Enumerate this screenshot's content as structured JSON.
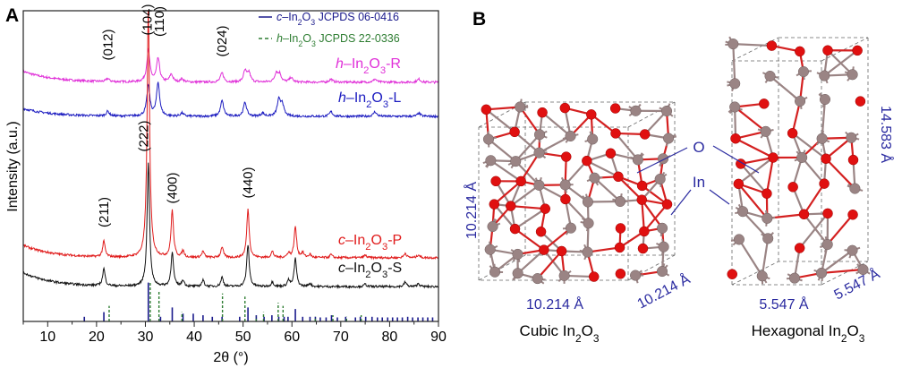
{
  "panel_a_label": "A",
  "panel_b_label": "B",
  "chart_data": {
    "type": "line",
    "xlabel": "2θ (°)",
    "ylabel": "Intensity (a.u.)",
    "xlim": [
      5,
      90
    ],
    "ylim": [
      0,
      100
    ],
    "xticks": [
      10,
      20,
      30,
      40,
      50,
      60,
      70,
      80,
      90
    ],
    "y_tick_labels": false,
    "grid": false,
    "legend": {
      "placement": "top-right",
      "entries": [
        {
          "label": "c–In2O3 JCPDS 06-0416",
          "color": "#1a1a8c",
          "style": "solid"
        },
        {
          "label": "h–In2O3 JCPDS 22-0336",
          "color": "#2e7d32",
          "style": "dashed"
        }
      ]
    },
    "series": [
      {
        "name": "h–In2O3-R",
        "color": "#e030d8",
        "baseline": 77,
        "start_offset": 3.5,
        "peaks": [
          [
            22.3,
            1
          ],
          [
            30.6,
            10
          ],
          [
            32.6,
            7.5
          ],
          [
            35.3,
            2.5
          ],
          [
            37.5,
            1
          ],
          [
            45.7,
            3
          ],
          [
            50.4,
            3.5
          ],
          [
            51.2,
            3
          ],
          [
            56.8,
            3
          ],
          [
            57.5,
            2.5
          ],
          [
            59.8,
            1.5
          ],
          [
            68,
            1
          ],
          [
            77,
            1
          ],
          [
            86,
            1
          ]
        ]
      },
      {
        "name": "h–In2O3-L",
        "color": "#1c1cc0",
        "baseline": 66,
        "start_offset": 2.5,
        "peaks": [
          [
            22.3,
            1.5
          ],
          [
            30.6,
            9.8
          ],
          [
            32.6,
            10.7
          ],
          [
            37.5,
            1
          ],
          [
            45.7,
            5
          ],
          [
            50.4,
            4.5
          ],
          [
            54,
            1
          ],
          [
            57.3,
            5
          ],
          [
            58,
            4
          ],
          [
            68,
            1.5
          ],
          [
            77,
            1.5
          ],
          [
            86,
            1
          ]
        ]
      },
      {
        "name": "c–In2O3-P",
        "color": "#e01b1b",
        "baseline": 20.5,
        "start_offset": 4,
        "peaks": [
          [
            21.5,
            5
          ],
          [
            30.6,
            80
          ],
          [
            35.5,
            15
          ],
          [
            37.7,
            2
          ],
          [
            41.8,
            2
          ],
          [
            45.7,
            3.5
          ],
          [
            51.0,
            15.6
          ],
          [
            56,
            2
          ],
          [
            59.3,
            1.5
          ],
          [
            60.7,
            10
          ],
          [
            62.2,
            1.5
          ],
          [
            63.7,
            1
          ],
          [
            68,
            1
          ],
          [
            75,
            0.8
          ],
          [
            83.2,
            1.5
          ],
          [
            85.9,
            1
          ]
        ]
      },
      {
        "name": "c–In2O3-S",
        "color": "#111111",
        "baseline": 11.2,
        "start_offset": 4.5,
        "peaks": [
          [
            21.5,
            5.5
          ],
          [
            30.6,
            40
          ],
          [
            35.5,
            11
          ],
          [
            37.7,
            2
          ],
          [
            41.8,
            2
          ],
          [
            45.7,
            3
          ],
          [
            51.0,
            13.5
          ],
          [
            56,
            1.5
          ],
          [
            59.3,
            2
          ],
          [
            60.7,
            9
          ],
          [
            63.7,
            1
          ],
          [
            75,
            0.8
          ],
          [
            83.2,
            1.5
          ],
          [
            85.9,
            1
          ]
        ]
      }
    ],
    "reference_cubic": [
      [
        17.5,
        1.5
      ],
      [
        21.5,
        3
      ],
      [
        30.6,
        12.5
      ],
      [
        33.1,
        1.5
      ],
      [
        35.5,
        4.5
      ],
      [
        37.7,
        2.5
      ],
      [
        39.8,
        2.5
      ],
      [
        41.8,
        2
      ],
      [
        43.7,
        1.5
      ],
      [
        45.7,
        1.5
      ],
      [
        49.3,
        1.5
      ],
      [
        51.0,
        4.5
      ],
      [
        52.7,
        2
      ],
      [
        54.3,
        1.5
      ],
      [
        55.9,
        2
      ],
      [
        57.3,
        1.5
      ],
      [
        58.4,
        1.5
      ],
      [
        59.2,
        1.5
      ],
      [
        60.7,
        4
      ],
      [
        62.2,
        1.5
      ],
      [
        63.7,
        1.5
      ],
      [
        64.8,
        1.5
      ],
      [
        65.8,
        1.3
      ],
      [
        67,
        1.3
      ],
      [
        68.1,
        2
      ],
      [
        69.3,
        1.3
      ],
      [
        71,
        1.5
      ],
      [
        73,
        1.3
      ],
      [
        74,
        1.5
      ],
      [
        75.1,
        1.5
      ],
      [
        76.4,
        1.5
      ],
      [
        77.5,
        1.3
      ],
      [
        78.5,
        1.3
      ],
      [
        79.6,
        1.3
      ],
      [
        80.6,
        1.3
      ],
      [
        81.6,
        1.3
      ],
      [
        82.6,
        1.3
      ],
      [
        83.7,
        1.5
      ],
      [
        84.7,
        1.3
      ],
      [
        85.8,
        1.3
      ],
      [
        86.8,
        1.3
      ],
      [
        87.8,
        1.3
      ],
      [
        88.8,
        1.3
      ]
    ],
    "reference_hexagonal": [
      [
        22.4,
        5
      ],
      [
        30.8,
        12.5
      ],
      [
        32.6,
        10
      ],
      [
        37.3,
        3
      ],
      [
        45.6,
        9
      ],
      [
        50.2,
        8
      ],
      [
        52.5,
        1.5
      ],
      [
        54,
        3
      ],
      [
        57,
        6
      ],
      [
        58,
        5
      ],
      [
        64.6,
        1.5
      ],
      [
        68.2,
        2
      ],
      [
        71,
        1.5
      ],
      [
        74,
        2
      ]
    ],
    "annotations": [
      {
        "label": "(012)",
        "x": 22.3
      },
      {
        "label": "(104)",
        "x": 30.4
      },
      {
        "label": "(110)",
        "x": 32.8
      },
      {
        "label": "(024)",
        "x": 45.7
      },
      {
        "label": "(222)",
        "x": 29.6
      },
      {
        "label": "(211)",
        "x": 21.5
      },
      {
        "label": "(400)",
        "x": 35.5
      },
      {
        "label": "(440)",
        "x": 51.0
      }
    ]
  },
  "panel_b": {
    "cubic_title": "Cubic In2O3",
    "hexagonal_title": "Hexagonal In2O3",
    "cubic_dims": {
      "a": "10.214 Å",
      "b": "10.214 Å",
      "c": "10.214 Å"
    },
    "hex_dims": {
      "a": "5.547 Å",
      "b": "5.547 Å",
      "c": "14.583 Å"
    },
    "atom_labels": {
      "oxygen": "O",
      "indium": "In"
    },
    "colors": {
      "oxygen": "#e01010",
      "indium": "#9a8484",
      "dimension_text": "#2a2aa0"
    }
  }
}
